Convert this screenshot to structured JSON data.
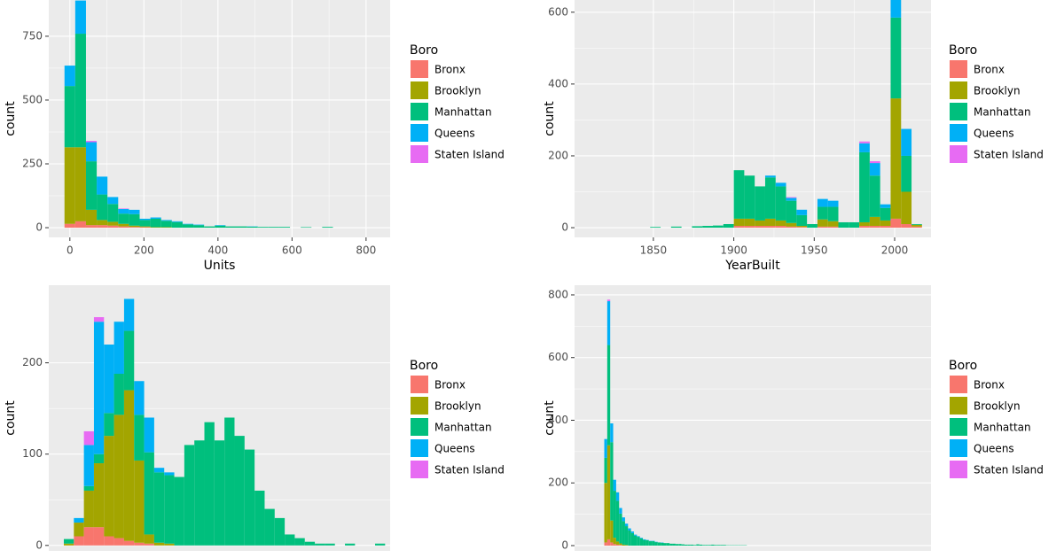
{
  "chart_data": [
    {
      "type": "histogram",
      "x_label": "Units",
      "y_label": "count",
      "legend_title": "Boro",
      "bins": [
        -14.5,
        14.5,
        43.5,
        72.5,
        101.5,
        130.5,
        159.5,
        188.5,
        217.5,
        246.5,
        275.5,
        304.5,
        333.5,
        362.5,
        391.5,
        420.5,
        449.5,
        478.5,
        507.5,
        536.5,
        565.5,
        594.5,
        623.5,
        652.5,
        681.5,
        710.5,
        739.5,
        768.5,
        797.5,
        826.5,
        855.5
      ],
      "series": [
        {
          "name": "Bronx",
          "color": "#F8766D",
          "values": [
            15,
            25,
            10,
            10,
            8,
            5,
            3,
            2,
            0,
            0,
            0,
            0,
            0,
            0,
            0,
            0,
            0,
            0,
            0,
            0,
            0,
            0,
            0,
            0,
            0,
            0,
            0,
            0,
            0,
            0
          ]
        },
        {
          "name": "Brooklyn",
          "color": "#A3A500",
          "values": [
            300,
            290,
            60,
            20,
            15,
            10,
            5,
            3,
            2,
            2,
            0,
            0,
            0,
            0,
            0,
            0,
            0,
            0,
            0,
            0,
            0,
            0,
            0,
            0,
            0,
            0,
            0,
            0,
            0,
            0
          ]
        },
        {
          "name": "Manhattan",
          "color": "#00BF7D",
          "values": [
            240,
            445,
            190,
            100,
            70,
            40,
            45,
            25,
            33,
            25,
            22,
            13,
            10,
            5,
            8,
            5,
            5,
            4,
            3,
            3,
            3,
            0,
            2,
            0,
            3,
            0,
            0,
            0,
            0,
            0
          ]
        },
        {
          "name": "Queens",
          "color": "#00B0F6",
          "values": [
            80,
            130,
            75,
            70,
            27,
            18,
            17,
            5,
            5,
            3,
            3,
            2,
            2,
            0,
            2,
            0,
            0,
            1,
            0,
            0,
            0,
            0,
            0,
            0,
            0,
            0,
            0,
            0,
            0,
            0
          ]
        },
        {
          "name": "Staten Island",
          "color": "#E76BF3",
          "values": [
            0,
            0,
            5,
            0,
            0,
            2,
            0,
            0,
            0,
            0,
            0,
            0,
            0,
            0,
            0,
            0,
            0,
            0,
            0,
            0,
            0,
            0,
            0,
            0,
            0,
            0,
            0,
            0,
            0,
            0
          ]
        }
      ],
      "xlim": [
        -57,
        865
      ],
      "xticks": [
        0,
        200,
        400,
        600,
        800
      ],
      "ylim": [
        -38,
        892
      ],
      "yticks": [
        0,
        250,
        500,
        750
      ],
      "grid": true
    },
    {
      "type": "histogram",
      "x_label": "YearBuilt",
      "y_label": "count",
      "legend_title": "Boro",
      "bins": [
        1822,
        1828.5,
        1835,
        1841.5,
        1848,
        1854.5,
        1861,
        1867.5,
        1874,
        1880.5,
        1887,
        1893.5,
        1900,
        1906.5,
        1913,
        1919.5,
        1926,
        1932.5,
        1939,
        1945.5,
        1952,
        1958.5,
        1965,
        1971.5,
        1978,
        1984.5,
        1991,
        1997.5,
        2004,
        2010.5,
        2017
      ],
      "series": [
        {
          "name": "Bronx",
          "color": "#F8766D",
          "values": [
            0,
            0,
            0,
            0,
            0,
            0,
            0,
            0,
            0,
            0,
            0,
            0,
            5,
            5,
            5,
            5,
            5,
            3,
            2,
            0,
            3,
            3,
            0,
            0,
            5,
            5,
            5,
            25,
            10,
            3
          ]
        },
        {
          "name": "Brooklyn",
          "color": "#A3A500",
          "values": [
            0,
            0,
            0,
            0,
            0,
            0,
            0,
            0,
            0,
            0,
            0,
            0,
            20,
            20,
            15,
            20,
            15,
            10,
            3,
            0,
            20,
            15,
            0,
            0,
            10,
            25,
            15,
            335,
            90,
            5
          ]
        },
        {
          "name": "Manhattan",
          "color": "#00BF7D",
          "values": [
            0,
            0,
            0,
            0,
            2,
            0,
            3,
            0,
            4,
            5,
            6,
            10,
            135,
            120,
            95,
            115,
            95,
            62,
            30,
            10,
            35,
            40,
            15,
            15,
            195,
            115,
            35,
            225,
            100,
            2
          ]
        },
        {
          "name": "Queens",
          "color": "#00B0F6",
          "values": [
            0,
            0,
            0,
            0,
            0,
            0,
            0,
            0,
            0,
            0,
            0,
            0,
            0,
            0,
            0,
            5,
            10,
            8,
            15,
            0,
            22,
            17,
            0,
            0,
            25,
            35,
            10,
            55,
            75,
            0
          ]
        },
        {
          "name": "Staten Island",
          "color": "#E76BF3",
          "values": [
            0,
            0,
            0,
            0,
            0,
            0,
            0,
            0,
            0,
            0,
            0,
            0,
            0,
            0,
            0,
            0,
            0,
            2,
            0,
            0,
            0,
            0,
            0,
            0,
            5,
            5,
            0,
            0,
            0,
            0
          ]
        }
      ],
      "xlim": [
        1801,
        2022.6
      ],
      "xticks": [
        1850,
        1900,
        1950,
        2000
      ],
      "ylim": [
        -27,
        634
      ],
      "yticks": [
        0,
        200,
        400,
        600
      ],
      "grid": true
    },
    {
      "type": "histogram",
      "y_label": "count",
      "legend_title": "Boro",
      "bins": [
        0.5,
        1.5,
        2.5,
        3.5,
        4.5,
        5.5,
        6.5,
        7.5,
        8.5,
        9.5,
        10.5,
        11.5,
        12.5,
        13.5,
        14.5,
        15.5,
        16.5,
        17.5,
        18.5,
        19.5,
        20.5,
        21.5,
        22.5,
        23.5,
        24.5,
        25.5,
        26.5,
        27.5,
        28.5,
        29.5,
        30.5,
        31.5,
        32.5
      ],
      "series": [
        {
          "name": "Bronx",
          "color": "#F8766D",
          "values": [
            0,
            10,
            20,
            20,
            10,
            8,
            5,
            3,
            2,
            0,
            0,
            0,
            0,
            0,
            0,
            0,
            0,
            0,
            0,
            0,
            0,
            0,
            0,
            0,
            0,
            0,
            0,
            0,
            0,
            0,
            0,
            0
          ]
        },
        {
          "name": "Brooklyn",
          "color": "#A3A500",
          "values": [
            2,
            15,
            40,
            70,
            110,
            135,
            165,
            90,
            10,
            3,
            2,
            0,
            0,
            0,
            0,
            0,
            0,
            0,
            0,
            0,
            0,
            0,
            0,
            0,
            0,
            0,
            0,
            0,
            0,
            0,
            0,
            0
          ]
        },
        {
          "name": "Manhattan",
          "color": "#00BF7D",
          "values": [
            5,
            0,
            5,
            10,
            25,
            45,
            65,
            50,
            90,
            77,
            75,
            75,
            110,
            115,
            135,
            115,
            140,
            120,
            105,
            60,
            40,
            30,
            12,
            8,
            4,
            2,
            2,
            0,
            2,
            0,
            0,
            2
          ]
        },
        {
          "name": "Queens",
          "color": "#00B0F6",
          "values": [
            0,
            5,
            45,
            145,
            75,
            57,
            35,
            37,
            38,
            5,
            3,
            0,
            0,
            0,
            0,
            0,
            0,
            0,
            0,
            0,
            0,
            0,
            0,
            0,
            0,
            0,
            0,
            0,
            0,
            0,
            0,
            0
          ]
        },
        {
          "name": "Staten Island",
          "color": "#E76BF3",
          "values": [
            0,
            0,
            15,
            5,
            0,
            0,
            0,
            0,
            0,
            0,
            0,
            0,
            0,
            0,
            0,
            0,
            0,
            0,
            0,
            0,
            0,
            0,
            0,
            0,
            0,
            0,
            0,
            0,
            0,
            0,
            0,
            0
          ]
        }
      ],
      "xlim": [
        -1,
        33
      ],
      "ylim": [
        -6,
        285
      ],
      "yticks": [
        0,
        100,
        200
      ],
      "grid": true
    },
    {
      "type": "histogram",
      "y_label": "count",
      "legend_title": "Boro",
      "bins": [
        0,
        1,
        2,
        3,
        4,
        5,
        6,
        7,
        8,
        9,
        10,
        11,
        12,
        13,
        14,
        15,
        16,
        17,
        18,
        19,
        20,
        21,
        22,
        23,
        24,
        25,
        26,
        27,
        28,
        29,
        30,
        31,
        32,
        33,
        34,
        35,
        36,
        37,
        38,
        39,
        40,
        41,
        42,
        43,
        44,
        45,
        46,
        47,
        48
      ],
      "series": [
        {
          "name": "Bronx",
          "color": "#F8766D",
          "values": [
            10,
            20,
            10,
            5,
            3,
            2,
            0,
            0,
            0,
            0,
            0,
            0,
            0,
            0,
            0,
            0,
            0,
            0,
            0,
            0,
            0,
            0,
            0,
            0,
            0,
            0,
            0,
            0,
            0,
            0,
            0,
            0,
            0,
            0,
            0,
            0,
            0,
            0,
            0,
            0,
            0,
            0,
            0,
            0,
            0,
            0,
            0,
            0
          ]
        },
        {
          "name": "Brooklyn",
          "color": "#A3A500",
          "values": [
            190,
            300,
            70,
            20,
            10,
            5,
            3,
            2,
            0,
            0,
            0,
            0,
            0,
            0,
            0,
            0,
            0,
            0,
            0,
            0,
            0,
            0,
            0,
            0,
            0,
            0,
            0,
            0,
            0,
            0,
            0,
            0,
            0,
            0,
            0,
            0,
            0,
            0,
            0,
            0,
            0,
            0,
            0,
            0,
            0,
            0,
            0,
            0
          ]
        },
        {
          "name": "Manhattan",
          "color": "#00BF7D",
          "values": [
            80,
            320,
            250,
            150,
            130,
            95,
            75,
            60,
            48,
            40,
            32,
            28,
            23,
            18,
            17,
            14,
            14,
            11,
            10,
            9,
            8,
            8,
            6,
            6,
            5,
            5,
            4,
            3,
            3,
            3,
            2,
            4,
            3,
            2,
            2,
            2,
            3,
            2,
            2,
            2,
            2,
            1,
            1,
            1,
            1,
            1,
            1,
            1
          ]
        },
        {
          "name": "Queens",
          "color": "#00B0F6",
          "values": [
            60,
            140,
            60,
            35,
            27,
            18,
            12,
            8,
            7,
            5,
            3,
            2,
            2,
            2,
            1,
            1,
            1,
            1,
            0,
            1,
            0,
            0,
            0,
            0,
            0,
            0,
            0,
            0,
            0,
            0,
            0,
            0,
            0,
            0,
            0,
            0,
            0,
            0,
            0,
            0,
            0,
            0,
            0,
            0,
            0,
            0,
            0,
            0
          ]
        },
        {
          "name": "Staten Island",
          "color": "#E76BF3",
          "values": [
            0,
            5,
            0,
            0,
            0,
            0,
            0,
            0,
            0,
            0,
            0,
            0,
            0,
            0,
            0,
            0,
            0,
            0,
            0,
            0,
            0,
            0,
            0,
            0,
            0,
            0,
            0,
            0,
            0,
            0,
            0,
            0,
            0,
            0,
            0,
            0,
            0,
            0,
            0,
            0,
            0,
            0,
            0,
            0,
            0,
            0,
            0,
            0
          ]
        }
      ],
      "xlim": [
        -10,
        110
      ],
      "ylim": [
        -17,
        831
      ],
      "yticks": [
        0,
        200,
        400,
        600,
        800
      ],
      "grid": true
    }
  ]
}
